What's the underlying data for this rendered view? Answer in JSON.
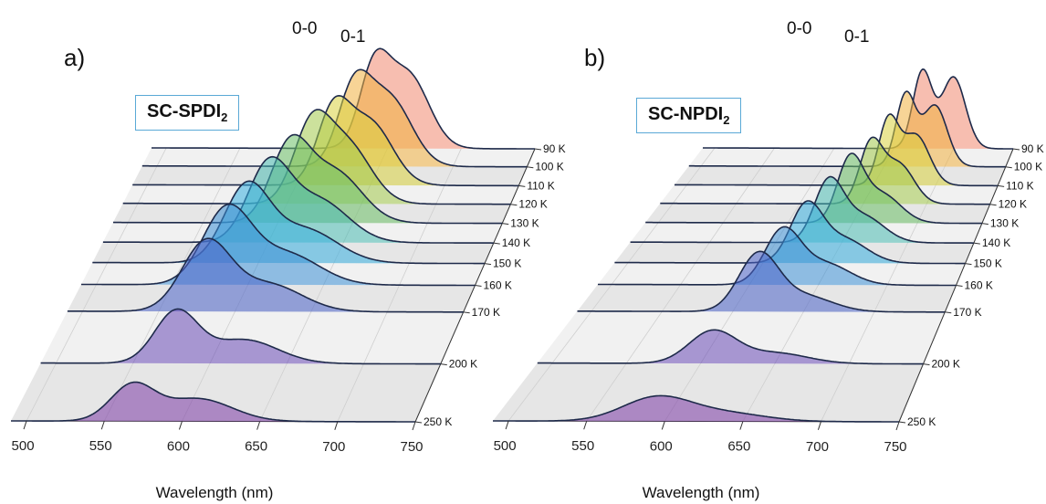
{
  "chart_data": [
    {
      "type": "area",
      "panel_label": "a)",
      "sample_label": "SC-SPDI",
      "sample_subscript": "2",
      "peak_labels": [
        "0-0",
        "0-1"
      ],
      "xlabel": "Wavelength (nm)",
      "x_ticks": [
        500,
        550,
        600,
        650,
        700,
        750
      ],
      "xlim": [
        490,
        750
      ],
      "temperatures": [
        "90 K",
        "100 K",
        "110 K",
        "120 K",
        "130 K",
        "140 K",
        "150 K",
        "160 K",
        "170 K",
        "200 K",
        "250 K"
      ],
      "series": [
        {
          "name": "250 K",
          "peaks": [
            {
              "center": 568,
              "width": 14,
              "amp": 0.62
            },
            {
              "center": 610,
              "width": 22,
              "amp": 0.4
            }
          ]
        },
        {
          "name": "200 K",
          "peaks": [
            {
              "center": 578,
              "width": 14,
              "amp": 0.9
            },
            {
              "center": 622,
              "width": 22,
              "amp": 0.42
            }
          ]
        },
        {
          "name": "170 K",
          "peaks": [
            {
              "center": 581,
              "width": 16,
              "amp": 1.2
            },
            {
              "center": 622,
              "width": 22,
              "amp": 0.48
            }
          ]
        },
        {
          "name": "160 K",
          "peaks": [
            {
              "center": 586,
              "width": 16,
              "amp": 1.3
            },
            {
              "center": 625,
              "width": 22,
              "amp": 0.55
            }
          ]
        },
        {
          "name": "150 K",
          "peaks": [
            {
              "center": 592,
              "width": 15,
              "amp": 1.3
            },
            {
              "center": 630,
              "width": 22,
              "amp": 0.6
            }
          ]
        },
        {
          "name": "140 K",
          "peaks": [
            {
              "center": 600,
              "width": 14,
              "amp": 1.3
            },
            {
              "center": 633,
              "width": 20,
              "amp": 0.75
            }
          ]
        },
        {
          "name": "130 K",
          "peaks": [
            {
              "center": 608,
              "width": 13,
              "amp": 1.3
            },
            {
              "center": 638,
              "width": 18,
              "amp": 0.9
            }
          ]
        },
        {
          "name": "120 K",
          "peaks": [
            {
              "center": 616,
              "width": 12,
              "amp": 1.25
            },
            {
              "center": 640,
              "width": 16,
              "amp": 1.05
            }
          ]
        },
        {
          "name": "110 K",
          "peaks": [
            {
              "center": 625,
              "width": 11,
              "amp": 1.25
            },
            {
              "center": 650,
              "width": 15,
              "amp": 1.1
            }
          ]
        },
        {
          "name": "100 K",
          "peaks": [
            {
              "center": 633,
              "width": 11,
              "amp": 1.3
            },
            {
              "center": 657,
              "width": 15,
              "amp": 1.2
            }
          ]
        },
        {
          "name": "90 K",
          "peaks": [
            {
              "center": 641,
              "width": 10,
              "amp": 1.35
            },
            {
              "center": 664,
              "width": 14,
              "amp": 1.3
            }
          ]
        }
      ]
    },
    {
      "type": "area",
      "panel_label": "b)",
      "sample_label": "SC-NPDI",
      "sample_subscript": "2",
      "peak_labels": [
        "0-0",
        "0-1"
      ],
      "xlabel": "Wavelength (nm)",
      "x_ticks": [
        500,
        550,
        600,
        650,
        700,
        750
      ],
      "xlim": [
        490,
        750
      ],
      "temperatures": [
        "90 K",
        "100 K",
        "110 K",
        "120 K",
        "130 K",
        "140 K",
        "150 K",
        "160 K",
        "170 K",
        "200 K",
        "250 K"
      ],
      "series": [
        {
          "name": "250 K",
          "peaks": [
            {
              "center": 595,
              "width": 22,
              "amp": 0.45
            },
            {
              "center": 640,
              "width": 25,
              "amp": 0.15
            }
          ]
        },
        {
          "name": "200 K",
          "peaks": [
            {
              "center": 608,
              "width": 16,
              "amp": 0.6
            },
            {
              "center": 650,
              "width": 22,
              "amp": 0.2
            }
          ]
        },
        {
          "name": "170 K",
          "peaks": [
            {
              "center": 618,
              "width": 14,
              "amp": 1.05
            },
            {
              "center": 650,
              "width": 20,
              "amp": 0.3
            }
          ]
        },
        {
          "name": "160 K",
          "peaks": [
            {
              "center": 624,
              "width": 13,
              "amp": 1.0
            },
            {
              "center": 655,
              "width": 18,
              "amp": 0.4
            }
          ]
        },
        {
          "name": "150 K",
          "peaks": [
            {
              "center": 632,
              "width": 12,
              "amp": 1.05
            },
            {
              "center": 660,
              "width": 17,
              "amp": 0.45
            }
          ]
        },
        {
          "name": "140 K",
          "peaks": [
            {
              "center": 640,
              "width": 11,
              "amp": 1.1
            },
            {
              "center": 666,
              "width": 16,
              "amp": 0.5
            }
          ]
        },
        {
          "name": "130 K",
          "peaks": [
            {
              "center": 648,
              "width": 10,
              "amp": 1.15
            },
            {
              "center": 672,
              "width": 15,
              "amp": 0.55
            }
          ]
        },
        {
          "name": "120 K",
          "peaks": [
            {
              "center": 656,
              "width": 9,
              "amp": 1.1
            },
            {
              "center": 678,
              "width": 12,
              "amp": 0.75
            }
          ]
        },
        {
          "name": "110 K",
          "peaks": [
            {
              "center": 662,
              "width": 8,
              "amp": 1.2
            },
            {
              "center": 684,
              "width": 11,
              "amp": 0.95
            }
          ]
        },
        {
          "name": "100 K",
          "peaks": [
            {
              "center": 668,
              "width": 8,
              "amp": 1.35
            },
            {
              "center": 692,
              "width": 10,
              "amp": 1.15
            }
          ]
        },
        {
          "name": "90 K",
          "peaks": [
            {
              "center": 674,
              "width": 8,
              "amp": 1.45
            },
            {
              "center": 700,
              "width": 10,
              "amp": 1.35
            }
          ]
        }
      ]
    }
  ]
}
